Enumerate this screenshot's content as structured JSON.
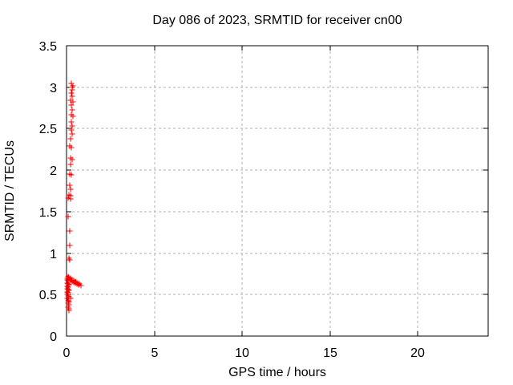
{
  "window": {
    "background": "#ffffff"
  },
  "chart_data": {
    "type": "scatter",
    "title": "Day 086 of 2023, SRMTID for receiver cn00",
    "xlabel": "GPS time / hours",
    "ylabel": "SRMTID / TECUs",
    "xlim": [
      0,
      24
    ],
    "ylim": [
      0,
      3.5
    ],
    "xticks": [
      0,
      5,
      10,
      15,
      20
    ],
    "yticks": [
      0,
      0.5,
      1,
      1.5,
      2,
      2.5,
      3,
      3.5
    ],
    "grid": true,
    "legend_position": "none",
    "marker": "plus",
    "colors": {
      "marker": "#ff0000",
      "grid": "#b0b0b0",
      "frame": "#000000",
      "text": "#000000"
    },
    "series": [
      {
        "name": "SRMTID",
        "points": [
          [
            0.27,
            3.05
          ],
          [
            0.36,
            3.02
          ],
          [
            0.3,
            3.0
          ],
          [
            0.34,
            2.97
          ],
          [
            0.27,
            2.93
          ],
          [
            0.32,
            2.89
          ],
          [
            0.23,
            2.84
          ],
          [
            0.37,
            2.82
          ],
          [
            0.27,
            2.78
          ],
          [
            0.32,
            2.73
          ],
          [
            0.27,
            2.67
          ],
          [
            0.37,
            2.65
          ],
          [
            0.27,
            2.58
          ],
          [
            0.32,
            2.53
          ],
          [
            0.27,
            2.48
          ],
          [
            0.32,
            2.44
          ],
          [
            0.23,
            2.38
          ],
          [
            0.18,
            2.29
          ],
          [
            0.26,
            2.27
          ],
          [
            0.23,
            2.15
          ],
          [
            0.32,
            2.13
          ],
          [
            0.23,
            2.07
          ],
          [
            0.18,
            1.95
          ],
          [
            0.28,
            1.94
          ],
          [
            0.18,
            1.82
          ],
          [
            0.25,
            1.77
          ],
          [
            0.14,
            1.7
          ],
          [
            0.24,
            1.69
          ],
          [
            0.07,
            1.66
          ],
          [
            0.21,
            1.65
          ],
          [
            0.1,
            1.44
          ],
          [
            0.18,
            1.27
          ],
          [
            0.18,
            1.09
          ],
          [
            0.14,
            0.94
          ],
          [
            0.2,
            0.92
          ],
          [
            0.03,
            0.7
          ],
          [
            0.07,
            0.72
          ],
          [
            0.12,
            0.71
          ],
          [
            0.05,
            0.68
          ],
          [
            0.1,
            0.67
          ],
          [
            0.16,
            0.69
          ],
          [
            0.21,
            0.7
          ],
          [
            0.25,
            0.68
          ],
          [
            0.3,
            0.66
          ],
          [
            0.34,
            0.68
          ],
          [
            0.39,
            0.67
          ],
          [
            0.43,
            0.65
          ],
          [
            0.48,
            0.66
          ],
          [
            0.52,
            0.64
          ],
          [
            0.57,
            0.65
          ],
          [
            0.61,
            0.63
          ],
          [
            0.66,
            0.64
          ],
          [
            0.7,
            0.62
          ],
          [
            0.75,
            0.63
          ],
          [
            0.8,
            0.61
          ],
          [
            0.03,
            0.64
          ],
          [
            0.08,
            0.63
          ],
          [
            0.13,
            0.62
          ],
          [
            0.05,
            0.6
          ],
          [
            0.1,
            0.59
          ],
          [
            0.03,
            0.57
          ],
          [
            0.08,
            0.56
          ],
          [
            0.13,
            0.55
          ],
          [
            0.05,
            0.53
          ],
          [
            0.1,
            0.52
          ],
          [
            0.03,
            0.5
          ],
          [
            0.08,
            0.48
          ],
          [
            0.13,
            0.47
          ],
          [
            0.05,
            0.45
          ],
          [
            0.23,
            0.45
          ],
          [
            0.1,
            0.43
          ],
          [
            0.15,
            0.42
          ],
          [
            0.08,
            0.4
          ],
          [
            0.12,
            0.38
          ],
          [
            0.08,
            0.35
          ],
          [
            0.12,
            0.33
          ],
          [
            0.15,
            0.31
          ]
        ]
      }
    ]
  }
}
